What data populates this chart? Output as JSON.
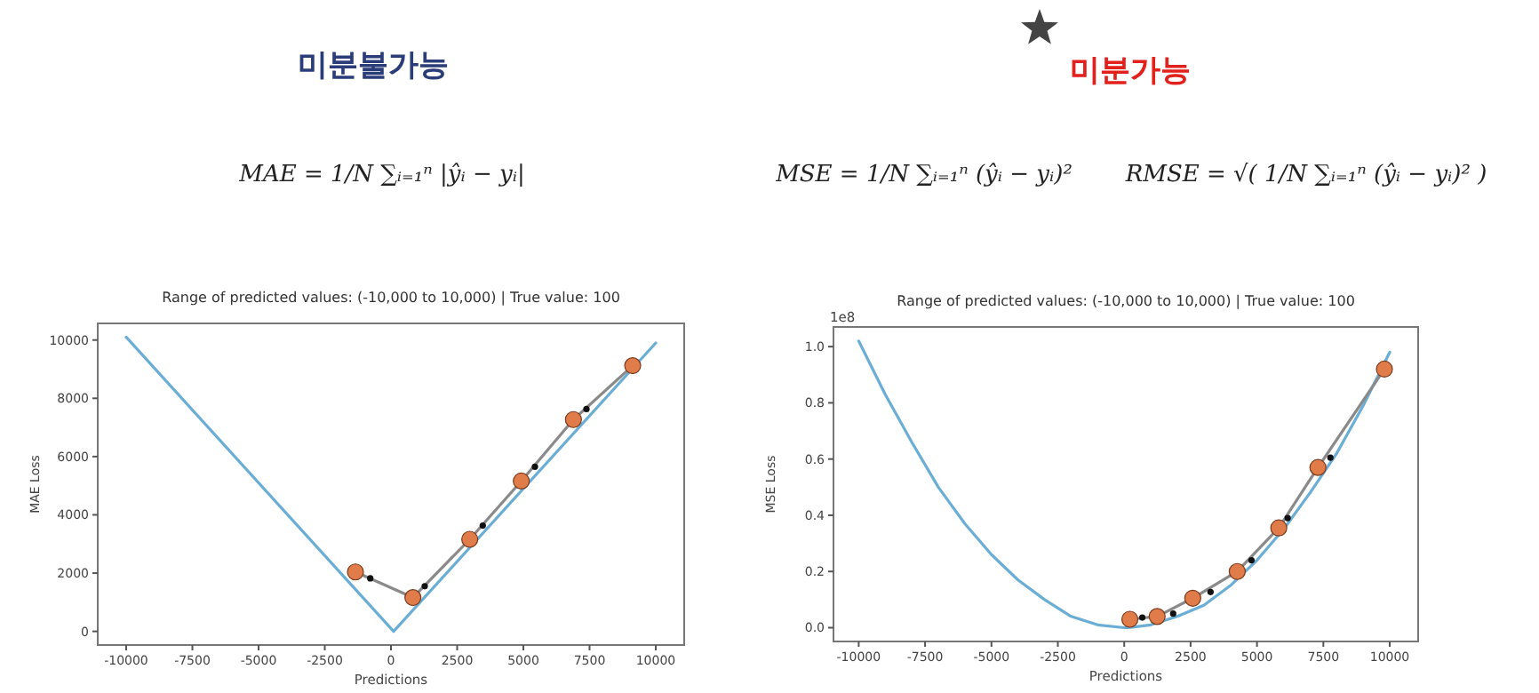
{
  "chart_data": [
    {
      "type": "line",
      "title": "Range of predicted values: (-10,000 to 10,000) | True value: 100",
      "xlabel": "Predictions",
      "ylabel": "MAE Loss",
      "annotations": [
        "미분불가능",
        "MAE = 1/N ∑ᵢ₌₁ⁿ |ŷᵢ − yᵢ|"
      ],
      "xlim": [
        -11074,
        11074
      ],
      "ylim": [
        -469,
        10571
      ],
      "xticks": [
        -10000,
        -7500,
        -5000,
        -2500,
        0,
        2500,
        5000,
        7500,
        10000
      ],
      "yticks": [
        0,
        2000,
        4000,
        6000,
        8000,
        10000
      ],
      "series": [
        {
          "color": "#6aaed6",
          "x": [
            -10000,
            100,
            10000
          ],
          "values": [
            10100,
            0,
            9900
          ]
        },
        {
          "color": "#8a8a8a",
          "x": [
            9128,
            6890,
            4922,
            2975,
            828,
            -1342
          ],
          "values": [
            9120,
            7270,
            5160,
            3160,
            1160,
            2040
          ]
        },
        {
          "type": "scatter",
          "color": "#e07b4a",
          "x": [
            -1342,
            828,
            2975,
            4922,
            6890,
            9128
          ],
          "values": [
            2040,
            1160,
            3160,
            5160,
            7270,
            9120
          ]
        },
        {
          "type": "scatter",
          "color": "#111111",
          "x": [
            -783,
            1275,
            3467,
            5436,
            7383
          ],
          "values": [
            1820,
            1550,
            3630,
            5650,
            7630
          ]
        }
      ]
    },
    {
      "type": "line",
      "title": "Range of predicted values: (-10,000 to 10,000) | True value: 100",
      "xlabel": "Predictions",
      "ylabel": "MSE Loss",
      "annotations": [
        "미분가능",
        "MSE = 1/N ∑ᵢ₌₁ⁿ (ŷᵢ − yᵢ)²",
        "RMSE = √( 1/N ∑ᵢ₌₁ⁿ (ŷᵢ − yᵢ)² )",
        "1e8"
      ],
      "xlim": [
        -10950,
        11070
      ],
      "ylim": [
        -0.049,
        1.07
      ],
      "xticks": [
        -10000,
        -7500,
        -5000,
        -2500,
        0,
        2500,
        5000,
        7500,
        10000
      ],
      "yticks": [
        {
          "value": 0,
          "label": "0.0"
        },
        0.2,
        0.4,
        0.6,
        0.8,
        {
          "value": 1,
          "label": "1.0"
        }
      ],
      "series": [
        {
          "color": "#6aaed6",
          "x": [
            -10000,
            -9000,
            -8000,
            -7000,
            -6000,
            -5000,
            -4000,
            -3000,
            -2000,
            -1000,
            0,
            100,
            1000,
            2000,
            3000,
            4000,
            5000,
            6000,
            7000,
            8000,
            9000,
            10000
          ],
          "values": [
            1.02,
            0.83,
            0.66,
            0.5,
            0.37,
            0.26,
            0.17,
            0.1,
            0.04,
            0.01,
            0,
            0,
            0.01,
            0.04,
            0.08,
            0.15,
            0.24,
            0.35,
            0.48,
            0.62,
            0.79,
            0.98
          ]
        },
        {
          "color": "#8a8a8a",
          "x": [
            9799,
            7296,
            5821,
            4257,
            2581,
            1240,
            212
          ],
          "values": [
            0.92,
            0.57,
            0.355,
            0.2,
            0.105,
            0.04,
            0.03
          ]
        },
        {
          "type": "scatter",
          "color": "#e07b4a",
          "x": [
            212,
            1240,
            2581,
            4257,
            5821,
            7296,
            9799
          ],
          "values": [
            0.03,
            0.04,
            0.105,
            0.2,
            0.355,
            0.57,
            0.92
          ]
        },
        {
          "type": "scatter",
          "color": "#111111",
          "x": [
            681,
            1844,
            3251,
            4793,
            6156,
            7765
          ],
          "values": [
            0.036,
            0.05,
            0.127,
            0.24,
            0.39,
            0.605
          ]
        }
      ]
    }
  ]
}
